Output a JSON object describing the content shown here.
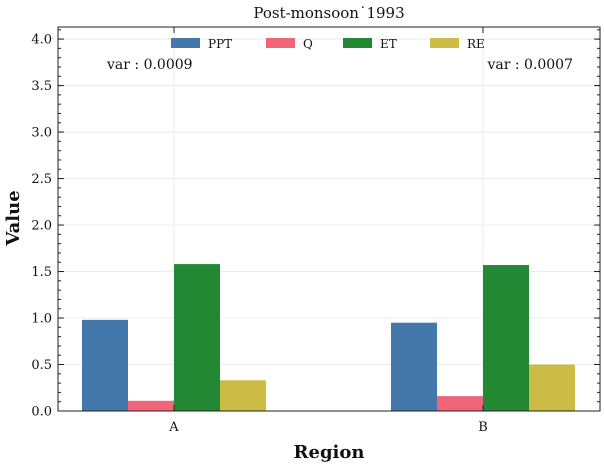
{
  "chart_data": {
    "type": "bar",
    "title": "Post-monsoon˙1993",
    "xlabel": "Region",
    "ylabel": "Value",
    "categories": [
      "A",
      "B"
    ],
    "series": [
      {
        "name": "PPT",
        "color": "#4477aa",
        "values": [
          0.98,
          0.95
        ]
      },
      {
        "name": "Q",
        "color": "#ee6677",
        "values": [
          0.11,
          0.16
        ]
      },
      {
        "name": "ET",
        "color": "#228833",
        "values": [
          1.58,
          1.57
        ]
      },
      {
        "name": "RE",
        "color": "#ccbb44",
        "values": [
          0.33,
          0.5
        ]
      }
    ],
    "ylim": [
      0,
      4.13
    ],
    "yticks": [
      "0.0",
      "0.5",
      "1.0",
      "1.5",
      "2.0",
      "2.5",
      "3.0",
      "3.5",
      "4.0"
    ],
    "grid": true,
    "legend_position": "top-center",
    "annotations": [
      "var : 0.0009",
      "var : 0.0007"
    ]
  }
}
